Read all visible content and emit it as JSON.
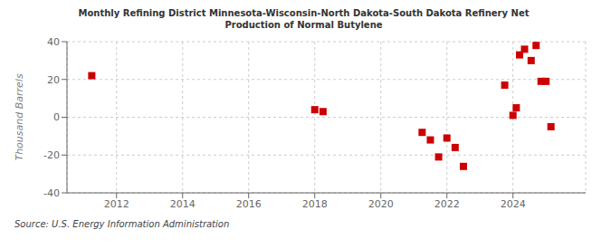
{
  "chart_data": {
    "type": "scatter",
    "title": "Monthly Refining District Minnesota-Wisconsin-North Dakota-South Dakota Refinery Net\nProduction of Normal Butylene",
    "ylabel": "Thousand Barrels",
    "annotation": "Source: U.S. Energy Information Administration",
    "x": [
      2011.25,
      2018.0,
      2018.25,
      2021.25,
      2021.5,
      2021.75,
      2022.0,
      2022.25,
      2022.5,
      2023.75,
      2024.0,
      2024.1,
      2024.2,
      2024.35,
      2024.55,
      2024.7,
      2024.85,
      2025.0,
      2025.15
    ],
    "values": [
      22,
      4,
      3,
      -8,
      -12,
      -21,
      -11,
      -16,
      -26,
      17,
      1,
      5,
      33,
      36,
      30,
      38,
      19,
      19,
      -5
    ],
    "color": "#cc0000",
    "marker": "square",
    "xlim": [
      2010.5,
      2026.2
    ],
    "ylim": [
      -40,
      40
    ],
    "xticks": [
      2012,
      2014,
      2016,
      2018,
      2020,
      2022,
      2024
    ],
    "yticks": [
      -40,
      -20,
      0,
      20,
      40
    ],
    "grid": true
  }
}
